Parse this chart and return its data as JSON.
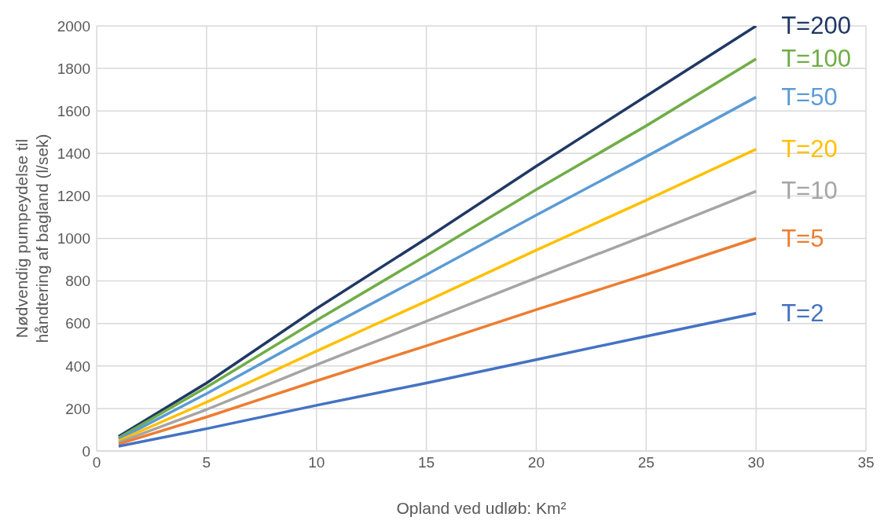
{
  "chart_data": {
    "type": "line",
    "xlabel": "Opland ved udløb: Km²",
    "ylabel": "Nødvendig pumpeydelse til håndtering af bagland (l/sek)",
    "x": [
      1,
      5,
      10,
      15,
      20,
      25,
      30
    ],
    "series": [
      {
        "name": "T=200",
        "color": "#203864",
        "values": [
          68,
          320,
          670,
          1000,
          1340,
          1670,
          2000
        ]
      },
      {
        "name": "T=100",
        "color": "#70ad47",
        "values": [
          62,
          300,
          615,
          920,
          1230,
          1530,
          1845
        ]
      },
      {
        "name": "T=50",
        "color": "#5b9bd5",
        "values": [
          55,
          270,
          555,
          830,
          1110,
          1385,
          1665
        ]
      },
      {
        "name": "T=20",
        "color": "#ffc000",
        "values": [
          48,
          230,
          470,
          705,
          945,
          1180,
          1420
        ]
      },
      {
        "name": "T=10",
        "color": "#a5a5a5",
        "values": [
          40,
          195,
          405,
          610,
          815,
          1015,
          1222
        ]
      },
      {
        "name": "T=5",
        "color": "#ed7d31",
        "values": [
          33,
          160,
          330,
          495,
          665,
          830,
          1000
        ]
      },
      {
        "name": "T=2",
        "color": "#4472c4",
        "values": [
          22,
          105,
          215,
          320,
          430,
          540,
          648
        ]
      }
    ],
    "xlim": [
      0,
      35
    ],
    "xticks": [
      0,
      5,
      10,
      15,
      20,
      25,
      30,
      35
    ],
    "ylim": [
      0,
      2000
    ],
    "yticks": [
      0,
      200,
      400,
      600,
      800,
      1000,
      1200,
      1400,
      1600,
      1800,
      2000
    ],
    "grid": true,
    "legend": false,
    "marker": "none",
    "line_style": "solid"
  }
}
